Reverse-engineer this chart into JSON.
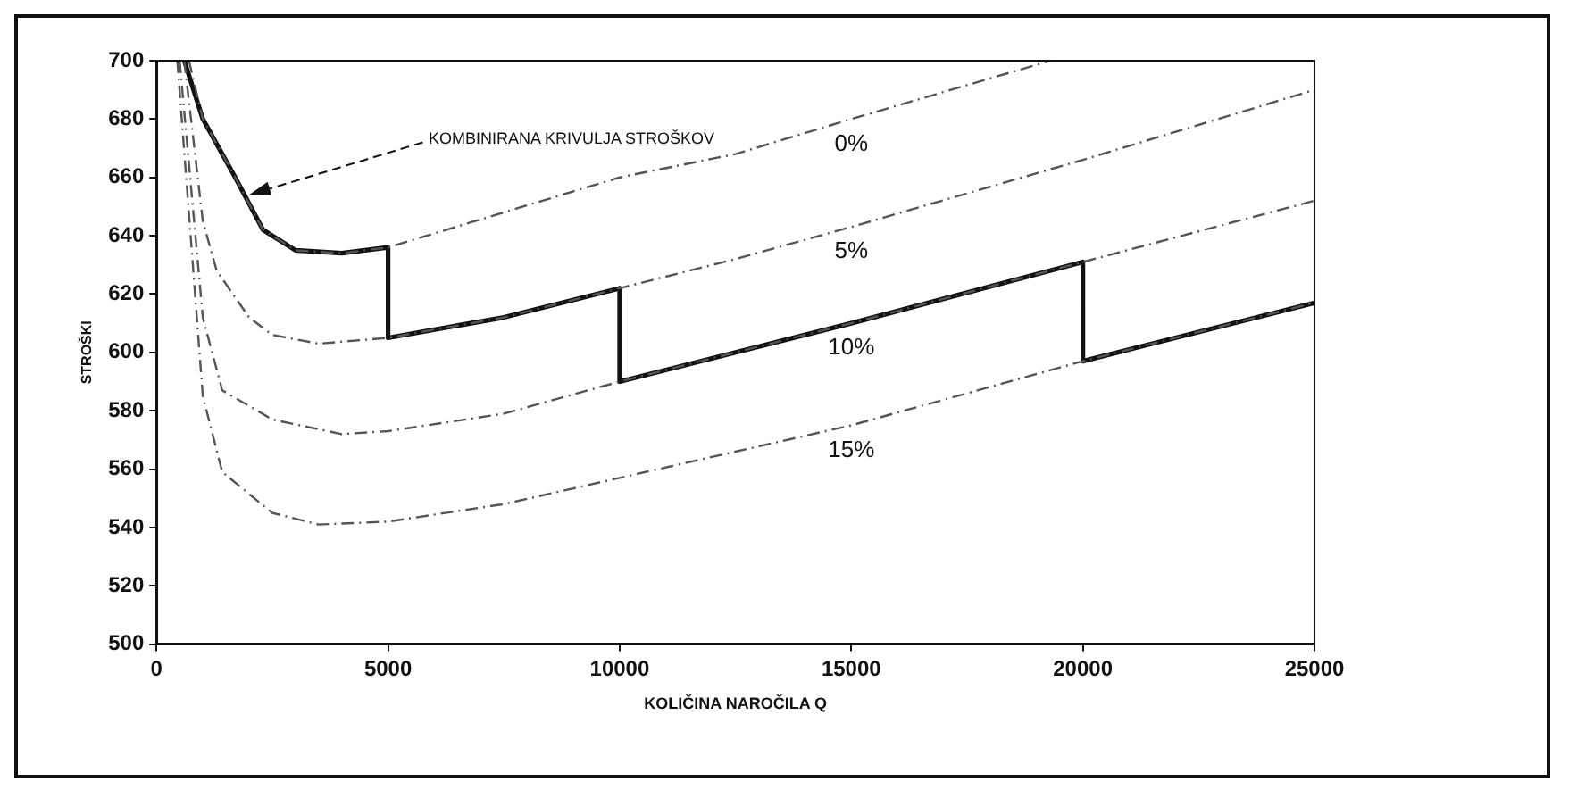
{
  "chart_data": {
    "type": "line",
    "xlabel": "KOLIČINA NAROČILA Q",
    "ylabel": "STROŠKI",
    "xlim": [
      0,
      25000
    ],
    "xticks": [
      0,
      5000,
      10000,
      15000,
      20000,
      25000
    ],
    "ylim": [
      500,
      700
    ],
    "yticks": [
      500,
      520,
      540,
      560,
      580,
      600,
      620,
      640,
      660,
      680,
      700
    ],
    "grid": false,
    "legend": false,
    "marker": "none",
    "annotations": [
      "KOMBINIRANA KRIVULJA STROŠKOV"
    ],
    "series": [
      {
        "name": "0%",
        "color": "#555555",
        "line_style": "dashed",
        "x": [
          700,
          1000,
          1700,
          2300,
          3000,
          4000,
          5000,
          7500,
          10000,
          12500,
          15000,
          19300
        ],
        "values": [
          700,
          680,
          660,
          642,
          635,
          634,
          636,
          648,
          660,
          668,
          680,
          700
        ]
      },
      {
        "name": "5%",
        "color": "#555555",
        "line_style": "dashed",
        "x": [
          600,
          1000,
          1300,
          2000,
          2500,
          3500,
          5000,
          7500,
          10000,
          12500,
          15000,
          20000,
          25000
        ],
        "values": [
          700,
          645,
          628,
          612,
          606,
          603,
          605,
          612,
          622,
          632,
          643,
          666,
          690
        ]
      },
      {
        "name": "10%",
        "color": "#555555",
        "line_style": "dashed",
        "x": [
          500,
          1000,
          1420,
          2500,
          4000,
          5000,
          7500,
          10000,
          15000,
          20000,
          25000
        ],
        "values": [
          700,
          612,
          587,
          577,
          572,
          573,
          579,
          590,
          610,
          631,
          652
        ]
      },
      {
        "name": "15%",
        "color": "#555555",
        "line_style": "dashed",
        "x": [
          450,
          1000,
          1420,
          2500,
          3500,
          5000,
          7500,
          10000,
          15000,
          20000,
          25000
        ],
        "values": [
          700,
          585,
          559,
          545,
          541,
          542,
          548,
          557,
          575,
          597,
          617
        ]
      },
      {
        "color": "#111111",
        "line_style": "solid",
        "x": [
          600,
          1000,
          1700,
          2300,
          3000,
          4000,
          5000,
          5000,
          7500,
          10000,
          10000,
          15000,
          20000,
          20000,
          25000
        ],
        "values": [
          700,
          680,
          660,
          642,
          635,
          634,
          636,
          605,
          612,
          622,
          590,
          610,
          631,
          597,
          617
        ]
      }
    ]
  }
}
